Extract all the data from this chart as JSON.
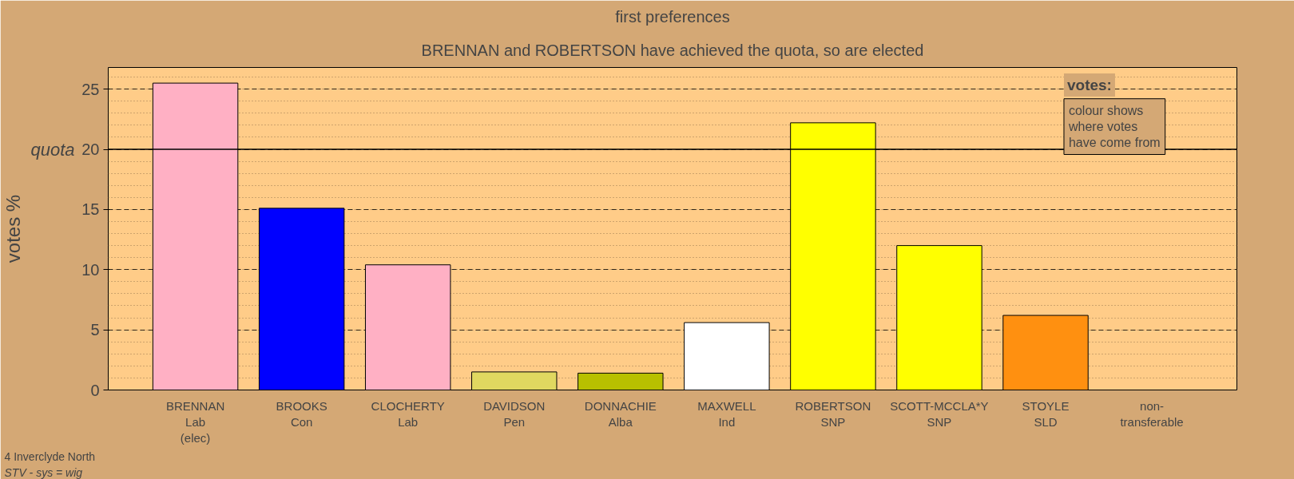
{
  "chart_data": {
    "type": "bar",
    "title": "first preferences",
    "subtitle": "BRENNAN and ROBERTSON have achieved the quota, so are elected",
    "ylabel": "votes %",
    "categories": [
      "BRENNAN\nLab\n(elec)",
      "BROOKS\nCon",
      "CLOCHERTY\nLab",
      "DAVIDSON\nPen",
      "DONNACHIE\nAlba",
      "MAXWELL\nInd",
      "ROBERTSON\nSNP",
      "SCOTT-MCCLA*Y\nSNP",
      "STOYLE\nSLD",
      "non-\ntransferable"
    ],
    "values": [
      25.5,
      15.1,
      10.4,
      1.5,
      1.4,
      5.6,
      22.2,
      12.0,
      6.2,
      null
    ],
    "colors": [
      "#ffb0c4",
      "#0000ff",
      "#ffb0c4",
      "#e0d860",
      "#b8c000",
      "#ffffff",
      "#ffff00",
      "#ffff00",
      "#ff9010",
      "#ffffff"
    ],
    "ylim": [
      0,
      26.8
    ],
    "yticks": [
      0,
      5,
      10,
      15,
      20,
      25
    ],
    "grid": "y",
    "ref_lines": [
      {
        "axis": "y",
        "value": 20,
        "label": "quota",
        "color": "#000000",
        "line_style": "solid"
      }
    ],
    "annotations": [
      "votes:",
      "colour shows\nwhere votes\nhave come from",
      "4 Inverclyde North",
      "STV - sys = wig"
    ]
  }
}
